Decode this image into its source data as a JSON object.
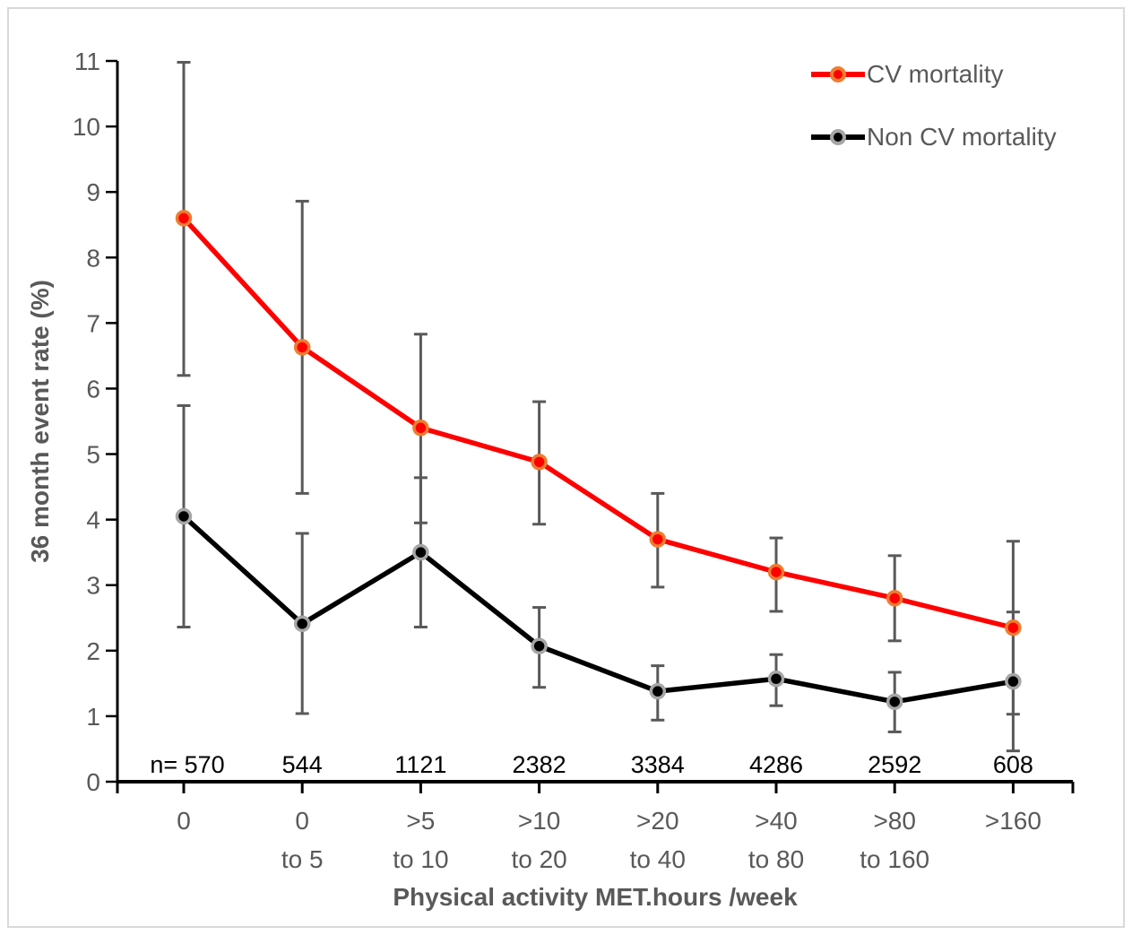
{
  "chart_data": {
    "type": "line",
    "title": "",
    "xlabel": "Physical activity MET.hours /week",
    "ylabel": "36 month event rate (%)",
    "ylim": [
      0,
      11
    ],
    "ytick_step": 1,
    "yticks": [
      0,
      1,
      2,
      3,
      4,
      5,
      6,
      7,
      8,
      9,
      10,
      11
    ],
    "grid": false,
    "legend_position": "top-right",
    "categories": [
      "0",
      "0 to 5",
      ">5 to 10",
      ">10 to 20",
      ">20 to 40",
      ">40 to 80",
      ">80 to 160",
      ">160"
    ],
    "category_label_lines": [
      [
        "0",
        ""
      ],
      [
        "0",
        "to 5"
      ],
      [
        ">5",
        "to 10"
      ],
      [
        ">10",
        "to 20"
      ],
      [
        ">20",
        "to 40"
      ],
      [
        ">40",
        "to 80"
      ],
      [
        ">80",
        "to 160"
      ],
      [
        ">160",
        ""
      ]
    ],
    "n_prefix": "n=",
    "n_values": [
      570,
      544,
      1121,
      2382,
      3384,
      4286,
      2592,
      608
    ],
    "series": [
      {
        "name": "CV mortality",
        "color": "#ff0000",
        "marker_ring": "#ed7d31",
        "values": [
          8.6,
          6.63,
          5.4,
          4.88,
          3.7,
          3.2,
          2.8,
          2.35
        ],
        "err_low": [
          6.2,
          4.4,
          3.95,
          3.93,
          2.97,
          2.6,
          2.15,
          1.03
        ],
        "err_high": [
          10.98,
          8.86,
          6.83,
          5.8,
          4.4,
          3.72,
          3.45,
          3.67
        ]
      },
      {
        "name": "Non CV mortality",
        "color": "#000000",
        "marker_ring": "#a6a6a6",
        "values": [
          4.05,
          2.41,
          3.5,
          2.07,
          1.38,
          1.57,
          1.22,
          1.53
        ],
        "err_low": [
          2.36,
          1.04,
          2.36,
          1.44,
          0.94,
          1.16,
          0.76,
          0.47
        ],
        "err_high": [
          5.74,
          3.79,
          4.64,
          2.66,
          1.77,
          1.94,
          1.67,
          2.59
        ]
      }
    ],
    "error_bar_color": "#595959",
    "text_color": "#595959",
    "n_label_color": "#000000",
    "axis_color": "#000000"
  }
}
